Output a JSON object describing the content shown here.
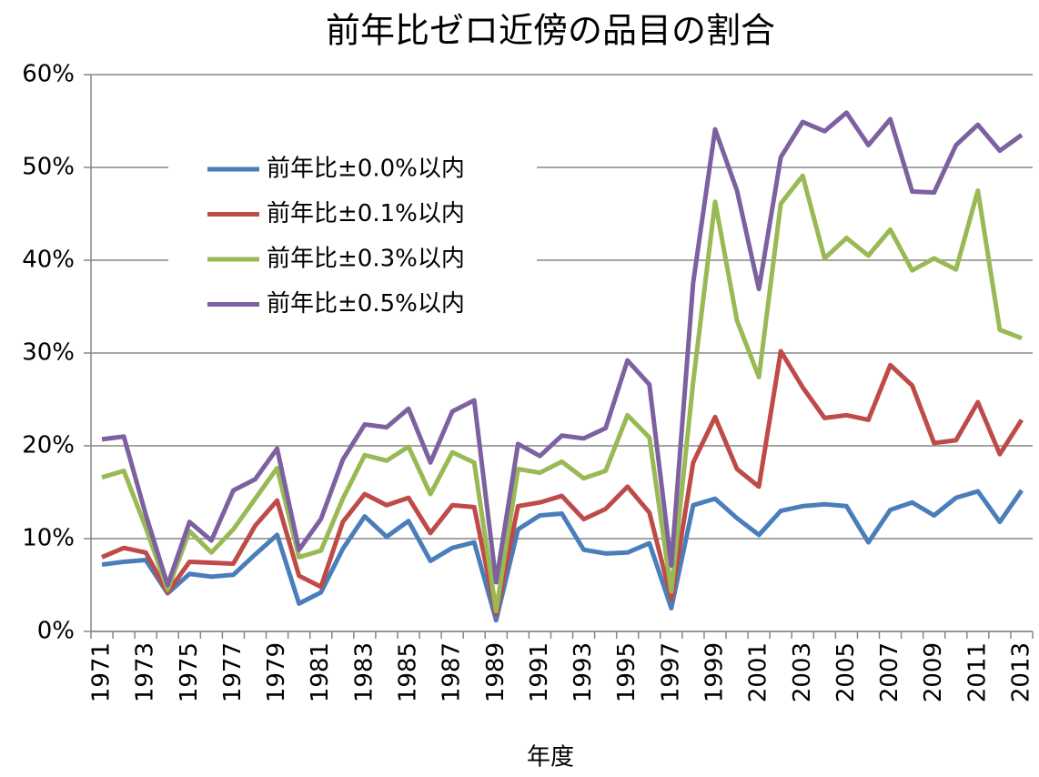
{
  "chart_data": {
    "type": "line",
    "title": "前年比ゼロ近傍の品目の割合",
    "x_label": "年度",
    "categories": [
      "1971",
      null,
      "1973",
      null,
      "1975",
      null,
      "1977",
      null,
      "1979",
      null,
      "1981",
      null,
      "1983",
      null,
      "1985",
      null,
      "1987",
      null,
      "1989",
      null,
      "1991",
      null,
      "1993",
      null,
      "1995",
      null,
      "1997",
      null,
      "1999",
      null,
      "2001",
      null,
      "2003",
      null,
      "2005",
      null,
      "2007",
      null,
      "2009",
      null,
      "2011",
      null,
      "2013"
    ],
    "series": [
      {
        "name": "前年比±0.0%以内",
        "color": "#4a7ebb",
        "values": [
          7.2,
          7.5,
          7.7,
          4.1,
          6.2,
          5.9,
          6.1,
          8.3,
          10.4,
          3.0,
          4.2,
          8.9,
          12.4,
          10.2,
          11.9,
          7.6,
          9.0,
          9.6,
          1.2,
          11.0,
          12.5,
          12.7,
          8.8,
          8.4,
          8.5,
          9.5,
          2.5,
          13.6,
          14.3,
          12.2,
          10.4,
          13.0,
          13.5,
          13.7,
          13.5,
          9.6,
          13.1,
          13.9,
          12.5,
          14.4,
          15.1,
          11.8,
          15.2
        ]
      },
      {
        "name": "前年比±0.1%以内",
        "color": "#be4b48",
        "values": [
          8.0,
          9.0,
          8.5,
          4.2,
          7.5,
          7.4,
          7.3,
          11.4,
          14.1,
          6.0,
          4.8,
          11.8,
          14.8,
          13.6,
          14.4,
          10.6,
          13.6,
          13.4,
          1.8,
          13.5,
          13.9,
          14.6,
          12.1,
          13.2,
          15.6,
          12.8,
          3.5,
          18.2,
          23.1,
          17.5,
          15.6,
          30.2,
          26.3,
          23.0,
          23.3,
          22.8,
          28.7,
          26.5,
          20.3,
          20.6,
          24.7,
          19.1,
          22.8
        ]
      },
      {
        "name": "前年比±0.3%以内",
        "color": "#98b954",
        "values": [
          16.6,
          17.3,
          11.2,
          4.5,
          10.8,
          8.5,
          11.0,
          14.3,
          17.6,
          8.0,
          8.7,
          14.3,
          19.0,
          18.4,
          19.9,
          14.8,
          19.3,
          18.2,
          2.2,
          17.5,
          17.1,
          18.3,
          16.5,
          17.3,
          23.3,
          20.9,
          4.3,
          26.9,
          46.3,
          33.5,
          27.4,
          46.1,
          49.1,
          40.2,
          42.4,
          40.5,
          43.3,
          38.9,
          40.2,
          39.0,
          47.5,
          32.5,
          31.6
        ]
      },
      {
        "name": "前年比±0.5%以内",
        "color": "#7d60a0",
        "values": [
          20.7,
          21.0,
          12.6,
          5.0,
          11.8,
          9.8,
          15.2,
          16.4,
          19.7,
          8.8,
          12.1,
          18.5,
          22.3,
          22.0,
          24.0,
          18.2,
          23.7,
          24.9,
          5.3,
          20.2,
          18.9,
          21.1,
          20.8,
          21.9,
          29.2,
          26.6,
          7.1,
          37.6,
          54.1,
          47.5,
          36.9,
          51.1,
          54.9,
          53.9,
          55.9,
          52.4,
          55.2,
          47.4,
          47.3,
          52.4,
          54.6,
          51.8,
          53.5
        ]
      }
    ],
    "ylim": [
      0,
      60
    ],
    "yticks": [
      {
        "value": 0,
        "label": "0%"
      },
      {
        "value": 10,
        "label": "10%"
      },
      {
        "value": 20,
        "label": "20%"
      },
      {
        "value": 30,
        "label": "30%"
      },
      {
        "value": 40,
        "label": "40%"
      },
      {
        "value": 50,
        "label": "50%"
      },
      {
        "value": 60,
        "label": "60%"
      }
    ],
    "grid": true,
    "legend": "upper left"
  }
}
